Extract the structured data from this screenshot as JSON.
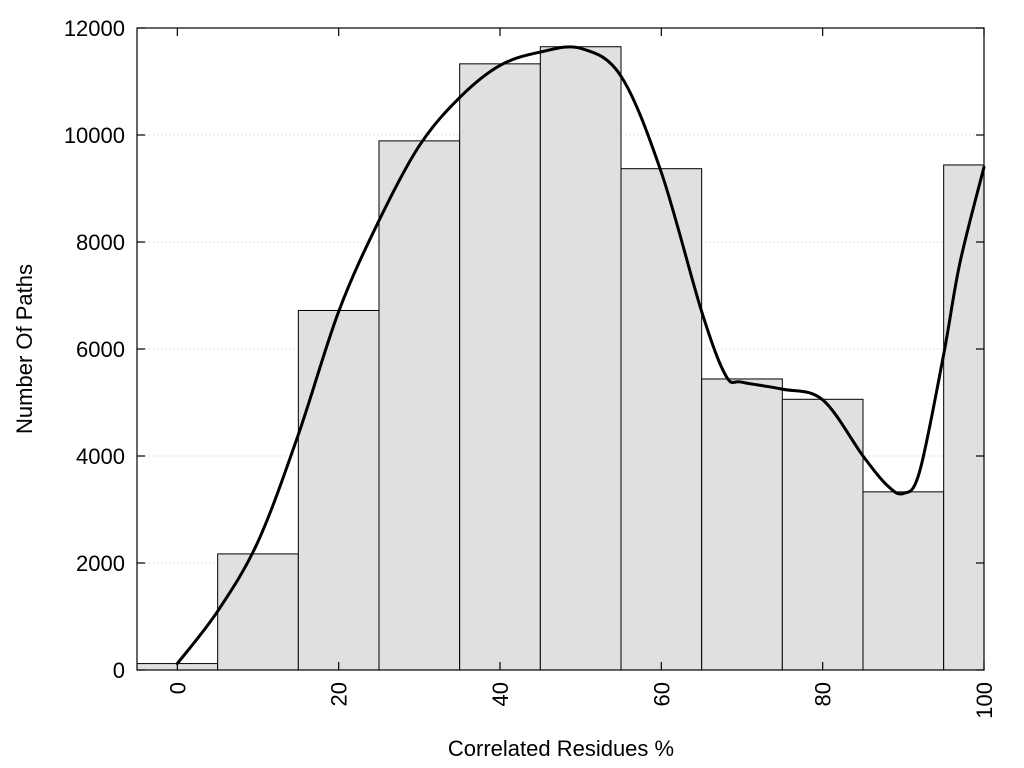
{
  "chart_data": {
    "type": "bar",
    "xlabel": "Correlated Residues %",
    "ylabel": "Number Of Paths",
    "xlim": [
      -5,
      100
    ],
    "ylim": [
      0,
      12000
    ],
    "x_ticks": [
      0,
      20,
      40,
      60,
      80,
      100
    ],
    "y_ticks": [
      0,
      2000,
      4000,
      6000,
      8000,
      10000,
      12000
    ],
    "grid": "horizontal dotted",
    "legend": "none",
    "bar_bins": [
      {
        "from": -5,
        "to": 5,
        "value": 120
      },
      {
        "from": 5,
        "to": 15,
        "value": 2170
      },
      {
        "from": 15,
        "to": 25,
        "value": 6720
      },
      {
        "from": 25,
        "to": 35,
        "value": 9890
      },
      {
        "from": 35,
        "to": 45,
        "value": 11330
      },
      {
        "from": 45,
        "to": 55,
        "value": 11650
      },
      {
        "from": 55,
        "to": 65,
        "value": 9370
      },
      {
        "from": 65,
        "to": 75,
        "value": 5440
      },
      {
        "from": 75,
        "to": 85,
        "value": 5060
      },
      {
        "from": 85,
        "to": 95,
        "value": 3330
      },
      {
        "from": 95,
        "to": 100,
        "value": 9440
      }
    ],
    "curve": {
      "x": [
        0,
        5,
        10,
        15,
        20,
        25,
        30,
        35,
        40,
        45,
        50,
        55,
        60,
        65,
        68,
        70,
        75,
        80,
        85,
        88,
        90,
        92,
        95,
        97,
        100
      ],
      "y": [
        120,
        1100,
        2400,
        4400,
        6700,
        8400,
        9800,
        10700,
        11300,
        11550,
        11620,
        11100,
        9300,
        6700,
        5500,
        5380,
        5250,
        5050,
        4000,
        3450,
        3300,
        3700,
        5900,
        7600,
        9400
      ]
    },
    "colors": {
      "bar_fill": "#e0e0e0",
      "bar_stroke": "#000000",
      "curve": "#000000",
      "grid": "#c8c8c8"
    }
  }
}
